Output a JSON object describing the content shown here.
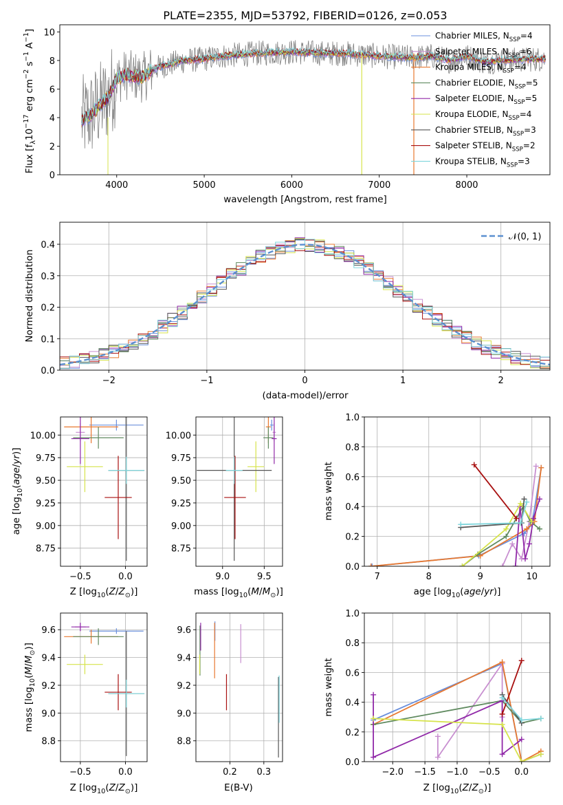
{
  "title": "PLATE=2355, MJD=53792, FIBERID=0126, z=0.053",
  "colors": {
    "Chabrier MILES": "#6a8fdc",
    "Salpeter MILES": "#c88fd0",
    "Kroupa MILES": "#e8782f",
    "Chabrier ELODIE": "#5f8a5f",
    "Salpeter ELODIE": "#9028a8",
    "Kroupa ELODIE": "#d6e34a",
    "Chabrier STELIB": "#555555",
    "Salpeter STELIB": "#a80f0f",
    "Kroupa STELIB": "#7fd6dc",
    "data": "#808080",
    "normal": "#5b8fd0"
  },
  "chart_data": [
    {
      "id": "spectrum",
      "type": "line",
      "title": "PLATE=2355, MJD=53792, FIBERID=0126, z=0.053",
      "xlabel": "wavelength [Angstrom, rest frame]",
      "xlim": [
        3350,
        8950
      ],
      "ylim": [
        0,
        10.5
      ],
      "xticks": [
        4000,
        5000,
        6000,
        7000,
        8000
      ],
      "yticks": [
        0,
        2,
        4,
        6,
        8,
        10
      ],
      "grid": false,
      "legend_position": "right",
      "legend_labels": [
        "Chabrier MILES, N",
        "Salpeter MILES, N",
        "Kroupa MILES, N",
        "Chabrier ELODIE, N",
        "Salpeter ELODIE, N",
        "Kroupa ELODIE, N",
        "Chabrier STELIB, N",
        "Salpeter STELIB, N",
        "Kroupa STELIB, N"
      ],
      "legend_nssp": [
        "4",
        "6",
        "4",
        "5",
        "5",
        "4",
        "3",
        "2",
        "3"
      ],
      "continuum_x": [
        3600,
        3700,
        3800,
        3900,
        4000,
        4100,
        4200,
        4300,
        4400,
        4500,
        4600,
        4700,
        4800,
        4900,
        5000,
        5200,
        5400,
        5600,
        5800,
        6000,
        6200,
        6400,
        6600,
        6800,
        7000,
        7200,
        7400,
        7600,
        7800,
        8000,
        8200,
        8400,
        8800
      ],
      "continuum_y": [
        3.8,
        4.2,
        4.8,
        5.4,
        6.7,
        7.0,
        6.9,
        6.8,
        7.3,
        7.6,
        7.7,
        7.9,
        8.0,
        8.05,
        8.1,
        8.3,
        8.4,
        8.5,
        8.55,
        8.6,
        8.55,
        8.5,
        8.5,
        8.4,
        8.3,
        8.25,
        8.2,
        8.3,
        8.0,
        8.3,
        7.9,
        8.0,
        8.1
      ]
    },
    {
      "id": "residuals",
      "type": "line",
      "xlabel": "(data-model)/error",
      "ylabel": "Normed distribution",
      "xlim": [
        -2.5,
        2.5
      ],
      "ylim": [
        0,
        0.47
      ],
      "xticks": [
        -2,
        -1,
        0,
        1,
        2
      ],
      "yticks": [
        0.0,
        0.1,
        0.2,
        0.3,
        0.4
      ],
      "grid": true,
      "legend_position": "top-right",
      "normal_label": "𝒩(0, 1)",
      "normal_mean": 0,
      "normal_sigma": 1,
      "bin_width": 0.1
    },
    {
      "id": "age-vs-Z",
      "type": "scatter",
      "xlabel": "Z [log₁₀(Z/Z⊙)]",
      "ylabel": "age  [log₁₀(age/yr)]",
      "xlim": [
        -0.72,
        0.24
      ],
      "ylim": [
        8.55,
        10.2
      ],
      "xticks": [
        -0.5,
        0.0
      ],
      "yticks": [
        8.75,
        9.0,
        9.25,
        9.5,
        9.75,
        10.0
      ],
      "grid": true,
      "series": [
        {
          "name": "Chabrier MILES",
          "x": [
            -0.1
          ],
          "y": [
            10.11
          ],
          "xerr": [
            0.3
          ],
          "yerr": [
            0.06
          ]
        },
        {
          "name": "Salpeter MILES",
          "x": [
            -0.5
          ],
          "y": [
            10.03
          ],
          "xerr": [
            0.05
          ],
          "yerr": [
            0.1
          ]
        },
        {
          "name": "Kroupa MILES",
          "x": [
            -0.38
          ],
          "y": [
            10.09
          ],
          "xerr": [
            0.3
          ],
          "yerr": [
            0.18
          ]
        },
        {
          "name": "Chabrier ELODIE",
          "x": [
            -0.3
          ],
          "y": [
            9.97
          ],
          "xerr": [
            0.28
          ],
          "yerr": [
            0.12
          ]
        },
        {
          "name": "Salpeter ELODIE",
          "x": [
            -0.5
          ],
          "y": [
            9.96
          ],
          "xerr": [
            0.1
          ],
          "yerr": [
            0.28
          ]
        },
        {
          "name": "Kroupa ELODIE",
          "x": [
            -0.45
          ],
          "y": [
            9.65
          ],
          "xerr": [
            0.2
          ],
          "yerr": [
            0.28
          ]
        },
        {
          "name": "Chabrier STELIB",
          "x": [
            0.01
          ],
          "y": [
            9.61
          ],
          "xerr": [
            0.2
          ],
          "yerr": [
            1.0
          ]
        },
        {
          "name": "Salpeter STELIB",
          "x": [
            -0.08
          ],
          "y": [
            9.31
          ],
          "xerr": [
            0.15
          ],
          "yerr": [
            0.46
          ]
        },
        {
          "name": "Kroupa STELIB",
          "x": [
            0.01
          ],
          "y": [
            9.61
          ],
          "xerr": [
            0.2
          ],
          "yerr": [
            0.15
          ]
        }
      ]
    },
    {
      "id": "age-vs-mass",
      "type": "scatter",
      "xlabel": "mass [log₁₀(M/M⊙)]",
      "xlim": [
        8.68,
        9.72
      ],
      "ylim": [
        8.55,
        10.2
      ],
      "xticks": [
        9.0,
        9.5
      ],
      "yticks": [
        8.75,
        9.0,
        9.25,
        9.5,
        9.75,
        10.0
      ],
      "grid": true,
      "series": [
        {
          "name": "Chabrier MILES",
          "x": [
            9.59
          ],
          "y": [
            10.11
          ],
          "xerr": [
            0.02
          ],
          "yerr": [
            0.06
          ]
        },
        {
          "name": "Salpeter MILES",
          "x": [
            9.62
          ],
          "y": [
            10.03
          ],
          "xerr": [
            0.02
          ],
          "yerr": [
            0.1
          ]
        },
        {
          "name": "Kroupa MILES",
          "x": [
            9.55
          ],
          "y": [
            10.09
          ],
          "xerr": [
            0.03
          ],
          "yerr": [
            0.18
          ]
        },
        {
          "name": "Chabrier ELODIE",
          "x": [
            9.55
          ],
          "y": [
            9.97
          ],
          "xerr": [
            0.06
          ],
          "yerr": [
            0.12
          ]
        },
        {
          "name": "Salpeter ELODIE",
          "x": [
            9.62
          ],
          "y": [
            9.96
          ],
          "xerr": [
            0.03
          ],
          "yerr": [
            0.28
          ]
        },
        {
          "name": "Kroupa ELODIE",
          "x": [
            9.4
          ],
          "y": [
            9.65
          ],
          "xerr": [
            0.1
          ],
          "yerr": [
            0.28
          ]
        },
        {
          "name": "Chabrier STELIB",
          "x": [
            9.14
          ],
          "y": [
            9.61
          ],
          "xerr": [
            0.45
          ],
          "yerr": [
            1.0
          ]
        },
        {
          "name": "Salpeter STELIB",
          "x": [
            9.15
          ],
          "y": [
            9.31
          ],
          "xerr": [
            0.13
          ],
          "yerr": [
            0.46
          ]
        },
        {
          "name": "Kroupa STELIB",
          "x": [
            9.14
          ],
          "y": [
            9.61
          ],
          "xerr": [
            0.1
          ],
          "yerr": [
            0.15
          ]
        }
      ]
    },
    {
      "id": "weight-vs-age",
      "type": "line",
      "xlabel": "age  [log₁₀(age/yr)]",
      "ylabel": "mass weight",
      "xlim": [
        6.75,
        10.35
      ],
      "ylim": [
        0,
        1.0
      ],
      "xticks": [
        7,
        8,
        9,
        10
      ],
      "yticks": [
        0.0,
        0.2,
        0.4,
        0.6,
        0.8,
        1.0
      ],
      "grid": true,
      "series": [
        {
          "name": "Chabrier MILES",
          "x": [
            6.9,
            8.97,
            9.85,
            10.0,
            10.18
          ],
          "y": [
            0.0,
            0.07,
            0.22,
            0.28,
            0.66
          ]
        },
        {
          "name": "Salpeter MILES",
          "x": [
            9.43,
            9.62,
            9.8,
            9.95,
            10.08
          ],
          "y": [
            0.0,
            0.15,
            0.05,
            0.3,
            0.67
          ]
        },
        {
          "name": "Kroupa MILES",
          "x": [
            6.88,
            9.0,
            9.9,
            10.05,
            10.18
          ],
          "y": [
            0.0,
            0.07,
            0.25,
            0.3,
            0.66
          ]
        },
        {
          "name": "Chabrier ELODIE",
          "x": [
            8.65,
            8.95,
            9.5,
            9.83,
            9.97,
            10.15
          ],
          "y": [
            0.0,
            0.08,
            0.2,
            0.4,
            0.3,
            0.25
          ]
        },
        {
          "name": "Salpeter ELODIE",
          "x": [
            9.68,
            9.77,
            9.87,
            9.95,
            10.03,
            10.15
          ],
          "y": [
            0.0,
            0.4,
            0.05,
            0.15,
            0.32,
            0.45
          ]
        },
        {
          "name": "Kroupa ELODIE",
          "x": [
            8.65,
            9.5,
            9.78,
            10.0
          ],
          "y": [
            0.0,
            0.25,
            0.42,
            0.3
          ]
        },
        {
          "name": "Chabrier STELIB",
          "x": [
            8.62,
            9.8,
            9.85
          ],
          "y": [
            0.26,
            0.29,
            0.45
          ]
        },
        {
          "name": "Salpeter STELIB",
          "x": [
            8.88,
            9.7
          ],
          "y": [
            0.68,
            0.32
          ]
        },
        {
          "name": "Kroupa STELIB",
          "x": [
            8.62,
            9.78,
            9.9
          ],
          "y": [
            0.28,
            0.29,
            0.43
          ]
        }
      ]
    },
    {
      "id": "mass-vs-Z",
      "type": "scatter",
      "xlabel": "Z [log₁₀(Z/Z⊙)]",
      "ylabel": "mass [log₁₀(M/M⊙)]",
      "xlim": [
        -0.72,
        0.24
      ],
      "ylim": [
        8.65,
        9.72
      ],
      "xticks": [
        -0.5,
        0.0
      ],
      "yticks": [
        8.8,
        9.0,
        9.2,
        9.4,
        9.6
      ],
      "grid": true,
      "series": [
        {
          "name": "Chabrier MILES",
          "x": [
            -0.1
          ],
          "y": [
            9.59
          ],
          "xerr": [
            0.3
          ],
          "yerr": [
            0.02
          ]
        },
        {
          "name": "Salpeter MILES",
          "x": [
            -0.5
          ],
          "y": [
            9.62
          ],
          "xerr": [
            0.06
          ],
          "yerr": [
            0.03
          ]
        },
        {
          "name": "Kroupa MILES",
          "x": [
            -0.38
          ],
          "y": [
            9.55
          ],
          "xerr": [
            0.3
          ],
          "yerr": [
            0.05
          ]
        },
        {
          "name": "Chabrier ELODIE",
          "x": [
            -0.3
          ],
          "y": [
            9.55
          ],
          "xerr": [
            0.28
          ],
          "yerr": [
            0.06
          ]
        },
        {
          "name": "Salpeter ELODIE",
          "x": [
            -0.5
          ],
          "y": [
            9.62
          ],
          "xerr": [
            0.1
          ],
          "yerr": [
            0.03
          ]
        },
        {
          "name": "Kroupa ELODIE",
          "x": [
            -0.45
          ],
          "y": [
            9.35
          ],
          "xerr": [
            0.2
          ],
          "yerr": [
            0.07
          ]
        },
        {
          "name": "Chabrier STELIB",
          "x": [
            0.01
          ],
          "y": [
            9.14
          ],
          "xerr": [
            0.2
          ],
          "yerr": [
            0.45
          ]
        },
        {
          "name": "Salpeter STELIB",
          "x": [
            -0.08
          ],
          "y": [
            9.15
          ],
          "xerr": [
            0.15
          ],
          "yerr": [
            0.13
          ]
        },
        {
          "name": "Kroupa STELIB",
          "x": [
            0.01
          ],
          "y": [
            9.14
          ],
          "xerr": [
            0.2
          ],
          "yerr": [
            0.1
          ]
        }
      ]
    },
    {
      "id": "mass-vs-ebv",
      "type": "scatter",
      "xlabel": "E(B-V)",
      "xlim": [
        0.1,
        0.355
      ],
      "ylim": [
        8.65,
        9.72
      ],
      "xticks": [
        0.2,
        0.3
      ],
      "yticks": [
        8.8,
        9.0,
        9.2,
        9.4,
        9.6
      ],
      "grid": true,
      "series": [
        {
          "name": "Chabrier MILES",
          "x": [
            0.156
          ],
          "y": [
            9.59
          ],
          "xerr": [
            0.0
          ],
          "yerr": [
            0.07
          ]
        },
        {
          "name": "Salpeter MILES",
          "x": [
            0.232
          ],
          "y": [
            9.5
          ],
          "xerr": [
            0.0
          ],
          "yerr": [
            0.14
          ]
        },
        {
          "name": "Kroupa MILES",
          "x": [
            0.155
          ],
          "y": [
            9.45
          ],
          "xerr": [
            0.0
          ],
          "yerr": [
            0.2
          ]
        },
        {
          "name": "Chabrier ELODIE",
          "x": [
            0.112
          ],
          "y": [
            9.45
          ],
          "xerr": [
            0.0
          ],
          "yerr": [
            0.18
          ]
        },
        {
          "name": "Salpeter ELODIE",
          "x": [
            0.114
          ],
          "y": [
            9.55
          ],
          "xerr": [
            0.0
          ],
          "yerr": [
            0.1
          ]
        },
        {
          "name": "Kroupa ELODIE",
          "x": [
            0.111
          ],
          "y": [
            9.35
          ],
          "xerr": [
            0.0
          ],
          "yerr": [
            0.07
          ]
        },
        {
          "name": "Chabrier STELIB",
          "x": [
            0.343
          ],
          "y": [
            8.97
          ],
          "xerr": [
            0.0
          ],
          "yerr": [
            0.29
          ]
        },
        {
          "name": "Salpeter STELIB",
          "x": [
            0.19
          ],
          "y": [
            9.15
          ],
          "xerr": [
            0.0
          ],
          "yerr": [
            0.13
          ]
        },
        {
          "name": "Kroupa STELIB",
          "x": [
            0.345
          ],
          "y": [
            9.1
          ],
          "xerr": [
            0.0
          ],
          "yerr": [
            0.17
          ]
        }
      ]
    },
    {
      "id": "weight-vs-Z",
      "type": "line",
      "xlabel": "Z [log₁₀(Z/Z⊙)]",
      "ylabel": "mass weight",
      "xlim": [
        -2.44,
        0.44
      ],
      "ylim": [
        0,
        1.0
      ],
      "xticks": [
        -2.0,
        -1.5,
        -1.0,
        -0.5,
        0.0
      ],
      "yticks": [
        0.0,
        0.2,
        0.4,
        0.6,
        0.8,
        1.0
      ],
      "grid": true,
      "series": [
        {
          "name": "Chabrier MILES",
          "x": [
            -2.3,
            -0.3,
            0.0,
            0.3
          ],
          "y": [
            0.28,
            0.66,
            0.0,
            0.05
          ]
        },
        {
          "name": "Salpeter MILES",
          "x": [
            -1.3,
            -1.3,
            -0.3,
            -0.3
          ],
          "y": [
            0.17,
            0.03,
            0.66,
            0.3
          ]
        },
        {
          "name": "Kroupa MILES",
          "x": [
            -2.3,
            -0.3,
            0.0,
            0.3
          ],
          "y": [
            0.25,
            0.67,
            0.0,
            0.07
          ]
        },
        {
          "name": "Chabrier ELODIE",
          "x": [
            -2.3,
            -0.3,
            0.0,
            0.3
          ],
          "y": [
            0.25,
            0.41,
            0.26,
            0.29
          ]
        },
        {
          "name": "Salpeter ELODIE",
          "x": [
            -2.3,
            -2.3,
            -0.3,
            -0.3,
            0.0
          ],
          "y": [
            0.45,
            0.03,
            0.41,
            0.05,
            0.15
          ]
        },
        {
          "name": "Kroupa ELODIE",
          "x": [
            -2.3,
            -0.3,
            0.0,
            0.3
          ],
          "y": [
            0.29,
            0.25,
            0.0,
            0.05
          ]
        },
        {
          "name": "Chabrier STELIB",
          "x": [
            -0.3,
            0.0
          ],
          "y": [
            0.45,
            0.26
          ]
        },
        {
          "name": "Salpeter STELIB",
          "x": [
            -0.3,
            0.0
          ],
          "y": [
            0.32,
            0.68
          ]
        },
        {
          "name": "Kroupa STELIB",
          "x": [
            -0.3,
            0.0,
            0.3
          ],
          "y": [
            0.43,
            0.28,
            0.29
          ]
        }
      ]
    }
  ]
}
